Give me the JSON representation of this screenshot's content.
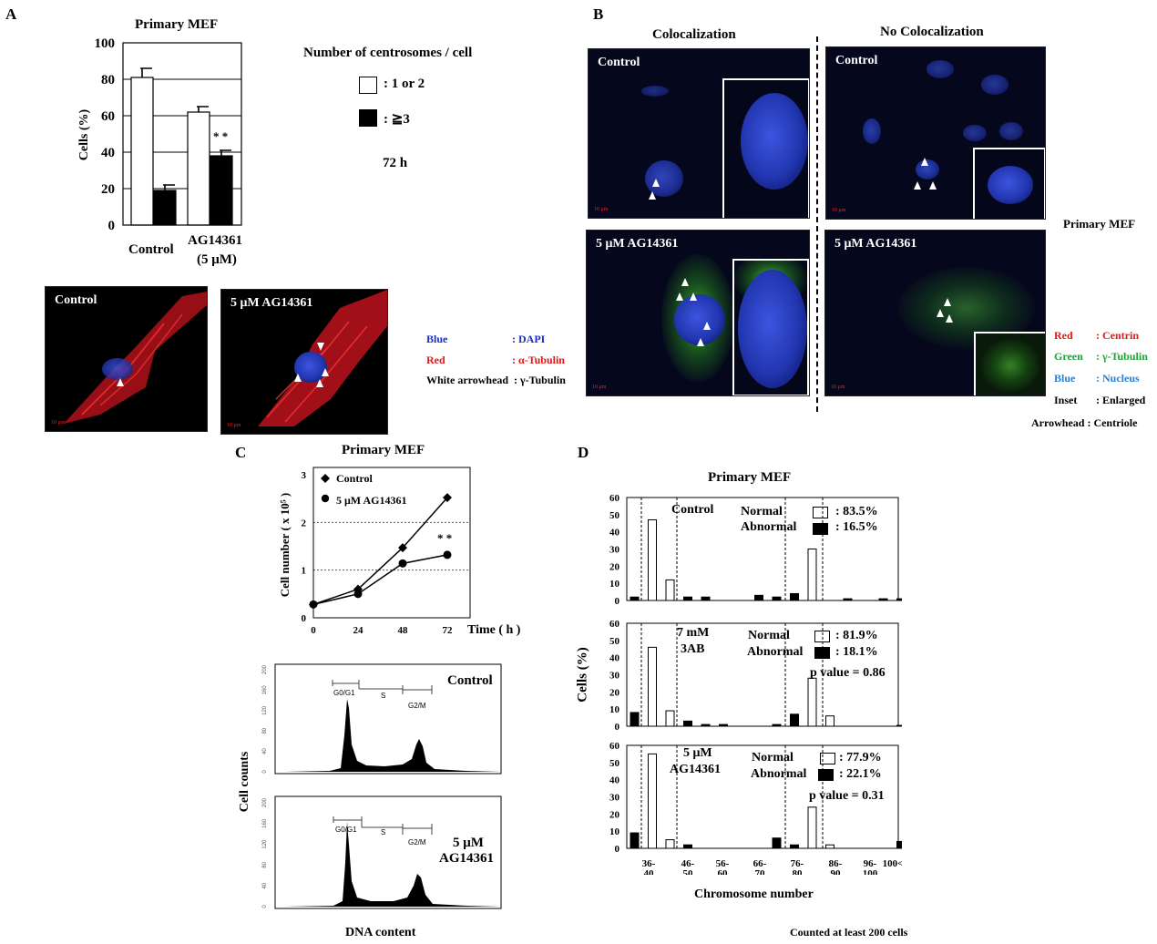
{
  "panel_letters": {
    "a": "A",
    "b": "B",
    "c": "C",
    "d": "D"
  },
  "panel_a": {
    "chart_title": "Primary MEF",
    "ylabel": "Cells (%)",
    "y_ticks": [
      "0",
      "20",
      "40",
      "60",
      "80",
      "100"
    ],
    "group_labels": [
      "Control",
      "AG14361",
      "(5 μM)"
    ],
    "significance": "* *",
    "legend_title": "Number of centrosomes / cell",
    "legend_white": ": 1 or 2",
    "legend_black": ": ≧3",
    "time_label": "72 h",
    "image_labels": [
      "Control",
      "5 μM AG14361"
    ],
    "stain_legend": [
      {
        "name": "Blue",
        "desc": ": DAPI",
        "color": "#1a2bd8"
      },
      {
        "name": "Red",
        "desc": ": α-Tubulin",
        "color": "#e01818"
      },
      {
        "name": "White arrowhead",
        "desc": ": γ-Tubulin",
        "color": "#000000"
      }
    ]
  },
  "panel_b": {
    "col_headers": [
      "Colocalization",
      "No Colocalization"
    ],
    "image_labels": [
      "Control",
      "Control",
      "5 μM  AG14361",
      "5 μM  AG14361"
    ],
    "side_label": "Primary MEF",
    "legend": [
      {
        "name": "Red",
        "desc": ":  Centrin",
        "color": "#e01818"
      },
      {
        "name": "Green",
        "desc": ": γ-Tubulin",
        "color": "#1fa23a"
      },
      {
        "name": "Blue",
        "desc": ": Nucleus",
        "color": "#2a7fd0"
      },
      {
        "name": "Inset",
        "desc": ": Enlarged",
        "color": "#000000"
      }
    ],
    "arrowhead_note": "Arrowhead : Centriole",
    "scale_text": "10 μm"
  },
  "panel_c": {
    "chart_title": "Primary MEF",
    "ylabel": "Cell number ( x 10⁵ )",
    "xlabel": "Time ( h )",
    "y_ticks": [
      "0",
      "1",
      "2",
      "3"
    ],
    "x_ticks": [
      "0",
      "24",
      "48",
      "72"
    ],
    "legend": [
      "Control",
      "5 μM AG14361"
    ],
    "significance": "* *",
    "flow_labels": [
      "Control",
      "5 μM",
      "AG14361"
    ],
    "flow_ylabel": "Cell counts",
    "flow_xlabel": "DNA content",
    "gates": [
      "G0/G1",
      "S",
      "G2/M"
    ],
    "flow_y_ticks": [
      "0",
      "40",
      "80",
      "120",
      "160",
      "200"
    ]
  },
  "panel_d": {
    "chart_title": "Primary MEF",
    "ylabel": "Cells  (%)",
    "xlabel": "Chromosome number",
    "y_ticks": [
      "0",
      "10",
      "20",
      "30",
      "40",
      "50",
      "60"
    ],
    "x_tick_labels": [
      [
        "36-",
        "40"
      ],
      [
        "46-",
        "50"
      ],
      [
        "56-",
        "60"
      ],
      [
        "66-",
        "70"
      ],
      [
        "76-",
        "80"
      ],
      [
        "86-",
        "90"
      ],
      [
        "96-",
        "100"
      ],
      [
        "100<",
        ""
      ]
    ],
    "footnote": "Counted at least 200 cells",
    "subpanels": [
      {
        "cond": [
          "Control",
          ""
        ],
        "normal_label": "Normal",
        "abnormal_label": "Abnormal",
        "normal": ": 83.5%",
        "abnormal": ": 16.5%",
        "p": ""
      },
      {
        "cond": [
          "7 mM",
          "3AB"
        ],
        "normal_label": "Normal",
        "abnormal_label": "Abnormal",
        "normal": ": 81.9%",
        "abnormal": ": 18.1%",
        "p": "p value = 0.86"
      },
      {
        "cond": [
          "5 μM",
          "AG14361"
        ],
        "normal_label": "Normal",
        "abnormal_label": "Abnormal",
        "normal": ": 77.9%",
        "abnormal": ": 22.1%",
        "p": "p value = 0.31"
      }
    ]
  },
  "chart_data": [
    {
      "type": "bar",
      "title": "Primary MEF",
      "ylabel": "Cells (%)",
      "ylim": [
        0,
        100
      ],
      "categories": [
        "Control",
        "AG14361 (5 μM)"
      ],
      "series": [
        {
          "name": ": 1 or 2",
          "values": [
            81,
            62
          ],
          "errors": [
            5,
            3
          ],
          "color": "#ffffff"
        },
        {
          "name": ": ≧3",
          "values": [
            19,
            38
          ],
          "errors": [
            3,
            3
          ],
          "color": "#000000"
        }
      ],
      "grid": true
    },
    {
      "type": "line",
      "title": "Primary MEF",
      "xlabel": "Time ( h )",
      "ylabel": "Cell number ( x 10⁵ )",
      "x": [
        0,
        24,
        48,
        72
      ],
      "xlim": [
        0,
        72
      ],
      "ylim": [
        0,
        3
      ],
      "series": [
        {
          "name": "Control",
          "values": [
            0.28,
            0.6,
            1.47,
            2.52
          ],
          "marker": "diamond"
        },
        {
          "name": "5 μM AG14361",
          "values": [
            0.28,
            0.5,
            1.14,
            1.32
          ],
          "marker": "circle"
        }
      ],
      "grid": true
    },
    {
      "type": "bar",
      "title": "Primary MEF",
      "xlabel": "Chromosome number",
      "ylabel": "Cells  (%)",
      "ylim": [
        0,
        60
      ],
      "categories": [
        "36-40",
        "46-50",
        "56-60",
        "66-70",
        "76-80",
        "86-90",
        "96-100",
        "100<"
      ],
      "panels": [
        {
          "name": "Control",
          "bins": [
            {
              "pos": 0.0,
              "v": 2,
              "fill": "black"
            },
            {
              "pos": 1.0,
              "v": 47,
              "fill": "white"
            },
            {
              "pos": 2.0,
              "v": 12,
              "fill": "white"
            },
            {
              "pos": 3.0,
              "v": 2,
              "fill": "black"
            },
            {
              "pos": 4.0,
              "v": 2,
              "fill": "black"
            },
            {
              "pos": 7.0,
              "v": 3,
              "fill": "black"
            },
            {
              "pos": 8.0,
              "v": 2,
              "fill": "black"
            },
            {
              "pos": 9.0,
              "v": 4,
              "fill": "black"
            },
            {
              "pos": 10.0,
              "v": 30,
              "fill": "white"
            },
            {
              "pos": 12.0,
              "v": 1,
              "fill": "black"
            },
            {
              "pos": 14.0,
              "v": 1,
              "fill": "black"
            },
            {
              "pos": 15.0,
              "v": 1,
              "fill": "black"
            }
          ]
        },
        {
          "name": "7 mM 3AB",
          "bins": [
            {
              "pos": 0.0,
              "v": 8,
              "fill": "black"
            },
            {
              "pos": 1.0,
              "v": 46,
              "fill": "white"
            },
            {
              "pos": 2.0,
              "v": 9,
              "fill": "white"
            },
            {
              "pos": 3.0,
              "v": 3,
              "fill": "black"
            },
            {
              "pos": 4.0,
              "v": 1,
              "fill": "black"
            },
            {
              "pos": 5.0,
              "v": 1,
              "fill": "black"
            },
            {
              "pos": 8.0,
              "v": 1,
              "fill": "black"
            },
            {
              "pos": 9.0,
              "v": 7,
              "fill": "black"
            },
            {
              "pos": 10.0,
              "v": 28,
              "fill": "white"
            },
            {
              "pos": 11.0,
              "v": 6,
              "fill": "white"
            },
            {
              "pos": 15.0,
              "v": 0.5,
              "fill": "black"
            }
          ]
        },
        {
          "name": "5 μM AG14361",
          "bins": [
            {
              "pos": 0.0,
              "v": 9,
              "fill": "black"
            },
            {
              "pos": 1.0,
              "v": 55,
              "fill": "white"
            },
            {
              "pos": 2.0,
              "v": 5,
              "fill": "white"
            },
            {
              "pos": 3.0,
              "v": 2,
              "fill": "black"
            },
            {
              "pos": 8.0,
              "v": 6,
              "fill": "black"
            },
            {
              "pos": 9.0,
              "v": 2,
              "fill": "black"
            },
            {
              "pos": 10.0,
              "v": 24,
              "fill": "white"
            },
            {
              "pos": 11.0,
              "v": 2,
              "fill": "white"
            },
            {
              "pos": 15.0,
              "v": 4,
              "fill": "black"
            }
          ]
        }
      ]
    }
  ]
}
